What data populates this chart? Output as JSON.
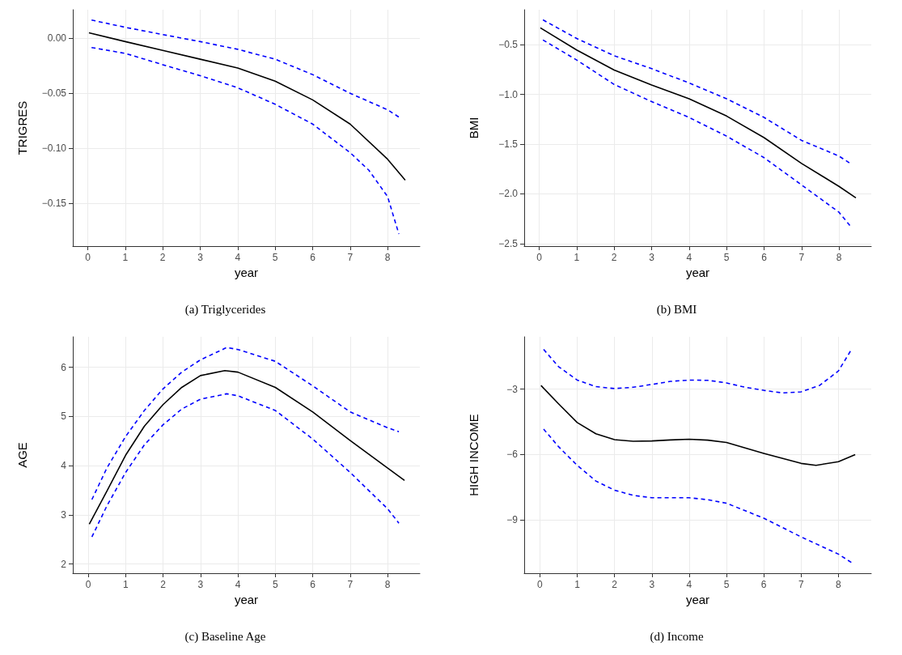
{
  "chart_data": [
    {
      "type": "line",
      "title": "(a) Triglycerides",
      "xlabel": "year",
      "ylabel": "TRIGRES",
      "xlim": [
        -0.4,
        8.86
      ],
      "xticks": [
        0,
        1,
        2,
        3,
        4,
        5,
        6,
        7,
        8
      ],
      "ylim": [
        -0.189,
        0.026
      ],
      "yticks": [
        {
          "value": -0.15,
          "label": "−0.15"
        },
        {
          "value": -0.1,
          "label": "−0.10"
        },
        {
          "value": -0.05,
          "label": "−0.05"
        },
        {
          "value": 0,
          "label": "0.00"
        }
      ],
      "grid": true,
      "marker": "none",
      "series": [
        {
          "color": "#000000",
          "line_style": "solid",
          "x": [
            0.03,
            1,
            2,
            3,
            4,
            5,
            6,
            7,
            8,
            8.47
          ],
          "values": [
            0.005,
            -0.003,
            -0.011,
            -0.019,
            -0.027,
            -0.039,
            -0.056,
            -0.078,
            -0.11,
            -0.129
          ]
        },
        {
          "color": "#0000ff",
          "line_style": "dashed",
          "x": [
            0.1,
            1,
            2,
            3,
            4,
            5,
            6,
            7,
            8,
            8.3
          ],
          "values": [
            0.0166,
            0.01,
            0.0034,
            -0.003,
            -0.01,
            -0.019,
            -0.033,
            -0.05,
            -0.065,
            -0.0716
          ]
        },
        {
          "color": "#0000ff",
          "line_style": "dashed",
          "x": [
            0.1,
            1,
            2,
            3,
            4,
            5,
            6,
            7,
            7.5,
            8,
            8.3
          ],
          "values": [
            -0.0084,
            -0.0137,
            -0.024,
            -0.034,
            -0.045,
            -0.06,
            -0.078,
            -0.104,
            -0.12,
            -0.144,
            -0.178
          ]
        }
      ]
    },
    {
      "type": "line",
      "title": "(b) BMI",
      "xlabel": "year",
      "ylabel": "BMI",
      "xlim": [
        -0.4,
        8.86
      ],
      "xticks": [
        0,
        1,
        2,
        3,
        4,
        5,
        6,
        7,
        8
      ],
      "ylim": [
        -2.526,
        -0.147
      ],
      "yticks": [
        {
          "value": -2.5,
          "label": "−2.5"
        },
        {
          "value": -2,
          "label": "−2.0"
        },
        {
          "value": -1.5,
          "label": "−1.5"
        },
        {
          "value": -1,
          "label": "−1.0"
        },
        {
          "value": -0.5,
          "label": "−0.5"
        }
      ],
      "grid": true,
      "marker": "none",
      "series": [
        {
          "color": "#000000",
          "line_style": "solid",
          "x": [
            0.03,
            1,
            2,
            3,
            4,
            5,
            6,
            7,
            8,
            8.45
          ],
          "values": [
            -0.329,
            -0.552,
            -0.754,
            -0.905,
            -1.043,
            -1.217,
            -1.434,
            -1.694,
            -1.925,
            -2.04
          ]
        },
        {
          "color": "#0000ff",
          "line_style": "dashed",
          "x": [
            0.1,
            1,
            2,
            3,
            4,
            5,
            6,
            7,
            8,
            8.3
          ],
          "values": [
            -0.249,
            -0.436,
            -0.61,
            -0.74,
            -0.884,
            -1.043,
            -1.231,
            -1.462,
            -1.62,
            -1.694
          ]
        },
        {
          "color": "#0000ff",
          "line_style": "dashed",
          "x": [
            0.1,
            1,
            2,
            3,
            4,
            5,
            6,
            7,
            8,
            8.3
          ],
          "values": [
            -0.451,
            -0.653,
            -0.899,
            -1.072,
            -1.231,
            -1.419,
            -1.636,
            -1.91,
            -2.185,
            -2.324
          ]
        }
      ]
    },
    {
      "type": "line",
      "title": "(c) Baseline Age",
      "xlabel": "year",
      "ylabel": "AGE",
      "xlim": [
        -0.41,
        8.86
      ],
      "xticks": [
        0,
        1,
        2,
        3,
        4,
        5,
        6,
        7,
        8
      ],
      "ylim": [
        1.812,
        6.618
      ],
      "yticks": [
        2,
        3,
        4,
        5,
        6
      ],
      "grid": true,
      "marker": "none",
      "series": [
        {
          "color": "#000000",
          "line_style": "solid",
          "x": [
            0.03,
            0.5,
            1,
            1.5,
            2,
            2.5,
            3,
            3.65,
            4,
            5,
            6,
            7,
            8,
            8.45
          ],
          "values": [
            2.81,
            3.48,
            4.21,
            4.8,
            5.24,
            5.59,
            5.83,
            5.93,
            5.9,
            5.59,
            5.09,
            4.51,
            3.95,
            3.7
          ]
        },
        {
          "color": "#0000ff",
          "line_style": "dashed",
          "x": [
            0.1,
            0.5,
            1,
            1.5,
            2,
            2.5,
            3,
            3.7,
            4,
            5,
            6,
            7,
            8,
            8.3
          ],
          "values": [
            3.31,
            3.95,
            4.59,
            5.12,
            5.56,
            5.9,
            6.15,
            6.4,
            6.36,
            6.12,
            5.62,
            5.09,
            4.77,
            4.69
          ]
        },
        {
          "color": "#0000ff",
          "line_style": "dashed",
          "x": [
            0.1,
            0.5,
            1,
            1.5,
            2,
            2.5,
            3,
            3.7,
            4,
            5,
            6,
            7,
            8,
            8.3
          ],
          "values": [
            2.55,
            3.18,
            3.86,
            4.42,
            4.83,
            5.15,
            5.35,
            5.46,
            5.42,
            5.12,
            4.54,
            3.86,
            3.12,
            2.83
          ]
        }
      ]
    },
    {
      "type": "line",
      "title": "(d) Income",
      "xlabel": "year",
      "ylabel": "HIGH INCOME",
      "xlim": [
        -0.42,
        8.88
      ],
      "xticks": [
        0,
        1,
        2,
        3,
        4,
        5,
        6,
        7,
        8
      ],
      "ylim": [
        -11.46,
        -0.59
      ],
      "yticks": [
        {
          "value": -9,
          "label": "−9"
        },
        {
          "value": -6,
          "label": "−6"
        },
        {
          "value": -3,
          "label": "−3"
        }
      ],
      "grid": true,
      "marker": "none",
      "series": [
        {
          "color": "#000000",
          "line_style": "solid",
          "x": [
            0.03,
            0.5,
            1,
            1.5,
            2,
            2.5,
            3,
            3.5,
            4,
            4.5,
            5,
            6,
            7,
            7.4,
            8,
            8.45
          ],
          "values": [
            -2.83,
            -3.67,
            -4.53,
            -5.05,
            -5.32,
            -5.39,
            -5.38,
            -5.33,
            -5.3,
            -5.34,
            -5.45,
            -5.95,
            -6.41,
            -6.5,
            -6.33,
            -6.01
          ]
        },
        {
          "color": "#0000ff",
          "line_style": "dashed",
          "x": [
            0.1,
            0.5,
            1,
            1.5,
            2,
            2.5,
            3,
            3.5,
            4,
            4.5,
            5,
            5.5,
            6,
            6.5,
            7,
            7.5,
            8,
            8.35
          ],
          "values": [
            -1.17,
            -1.96,
            -2.58,
            -2.88,
            -2.97,
            -2.91,
            -2.78,
            -2.64,
            -2.58,
            -2.59,
            -2.71,
            -2.91,
            -3.05,
            -3.17,
            -3.12,
            -2.82,
            -2.16,
            -1.17
          ]
        },
        {
          "color": "#0000ff",
          "line_style": "dashed",
          "x": [
            0.1,
            0.5,
            1,
            1.5,
            2,
            2.5,
            3,
            4,
            4.5,
            5,
            6,
            7,
            8,
            8.35
          ],
          "values": [
            -4.83,
            -5.64,
            -6.5,
            -7.22,
            -7.64,
            -7.88,
            -7.99,
            -7.99,
            -8.08,
            -8.24,
            -8.93,
            -9.79,
            -10.58,
            -10.97
          ]
        }
      ]
    }
  ]
}
